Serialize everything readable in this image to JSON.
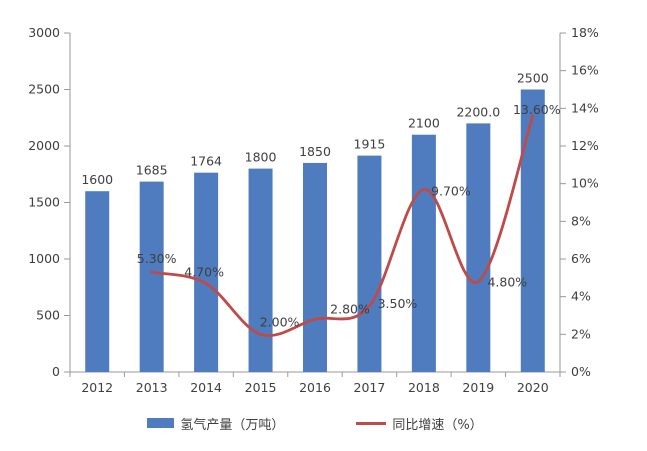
{
  "chart_data": {
    "type": "bar",
    "combo": "bar+line",
    "title": "",
    "categories": [
      "2012",
      "2013",
      "2014",
      "2015",
      "2016",
      "2017",
      "2018",
      "2019",
      "2020"
    ],
    "series": [
      {
        "name": "氢气产量（万吨）",
        "type": "bar",
        "axis": "left",
        "color": "#4e7cbe",
        "values": [
          1600,
          1685,
          1764,
          1800,
          1850,
          1915,
          2100,
          2200,
          2500
        ],
        "data_labels": [
          "1600",
          "1685",
          "1764",
          "1800",
          "1850",
          "1915",
          "2100",
          "2200.0",
          "2500"
        ]
      },
      {
        "name": "同比增速（%）",
        "type": "line",
        "axis": "right",
        "color": "#be4b48",
        "values": [
          null,
          5.3,
          4.7,
          2.0,
          2.8,
          3.5,
          9.7,
          4.8,
          13.6
        ],
        "data_labels": [
          "",
          "5.30%",
          "4.70%",
          "2.00%",
          "2.80%",
          "3.50%",
          "9.70%",
          "4.80%",
          "13.60%"
        ]
      }
    ],
    "left_axis": {
      "min": 0,
      "max": 3000,
      "step": 500,
      "tick_labels": [
        "0",
        "500",
        "1000",
        "1500",
        "2000",
        "2500",
        "3000"
      ]
    },
    "right_axis": {
      "min": 0,
      "max": 18,
      "step": 2,
      "tick_labels": [
        "0%",
        "2%",
        "4%",
        "6%",
        "8%",
        "10%",
        "12%",
        "14%",
        "16%",
        "18%"
      ]
    },
    "grid": false,
    "legend_position": "bottom",
    "xlabel": "",
    "ylabel": ""
  },
  "colors": {
    "bar": "#4e7cbe",
    "line": "#be4b48",
    "axis": "#9a9a9a",
    "text": "#3f3f3f"
  }
}
